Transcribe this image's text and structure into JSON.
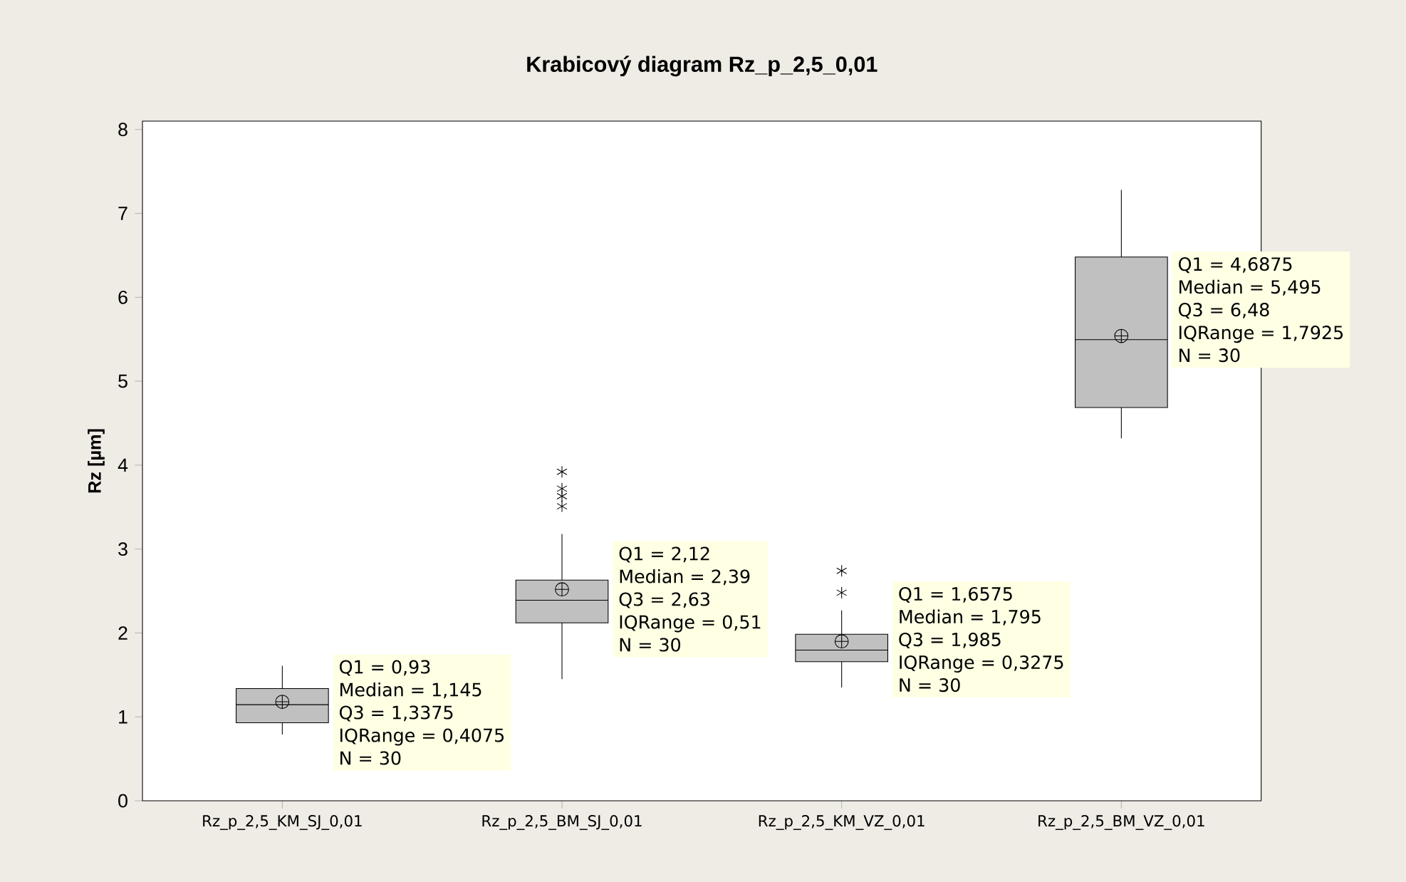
{
  "chart_data": {
    "type": "box",
    "title": "Krabicový diagram Rz_p_2,5_0,01",
    "ylabel": "Rz [µm]",
    "categories": [
      "Rz_p_2,5_KM_SJ_0,01",
      "Rz_p_2,5_BM_SJ_0,01",
      "Rz_p_2,5_KM_VZ_0,01",
      "Rz_p_2,5_BM_VZ_0,01"
    ],
    "color": "#c0c0c0",
    "boxes": [
      {
        "low": 0.79,
        "q1": 0.93,
        "median": 1.145,
        "q3": 1.3375,
        "high": 1.61,
        "mean": 1.18
      },
      {
        "low": 1.45,
        "q1": 2.12,
        "median": 2.39,
        "q3": 2.63,
        "high": 3.18,
        "mean": 2.52,
        "outliers": [
          3.51,
          3.63,
          3.72,
          3.92
        ]
      },
      {
        "low": 1.35,
        "q1": 1.6575,
        "median": 1.795,
        "q3": 1.985,
        "high": 2.27,
        "mean": 1.9,
        "outliers": [
          2.48,
          2.74
        ]
      },
      {
        "low": 4.32,
        "q1": 4.6875,
        "median": 5.495,
        "q3": 6.48,
        "high": 7.28,
        "mean": 5.54
      }
    ],
    "ylim": [
      0,
      8.1
    ],
    "yticks": [
      0,
      1,
      2,
      3,
      4,
      5,
      6,
      7,
      8
    ],
    "grid": false,
    "annotations": [
      "Q1 = 0,93",
      "Median = 1,145",
      "Q3 = 1,3375",
      "IQRange = 0,4075",
      "N = 30",
      "Q1 = 2,12",
      "Median = 2,39",
      "Q3 = 2,63",
      "IQRange = 0,51",
      "N = 30",
      "Q1 = 1,6575",
      "Median = 1,795",
      "Q3 = 1,985",
      "IQRange = 0,3275",
      "N = 30",
      "Q1 = 4,6875",
      "Median = 5,495",
      "Q3 = 6,48",
      "IQRange = 1,7925",
      "N = 30"
    ]
  }
}
